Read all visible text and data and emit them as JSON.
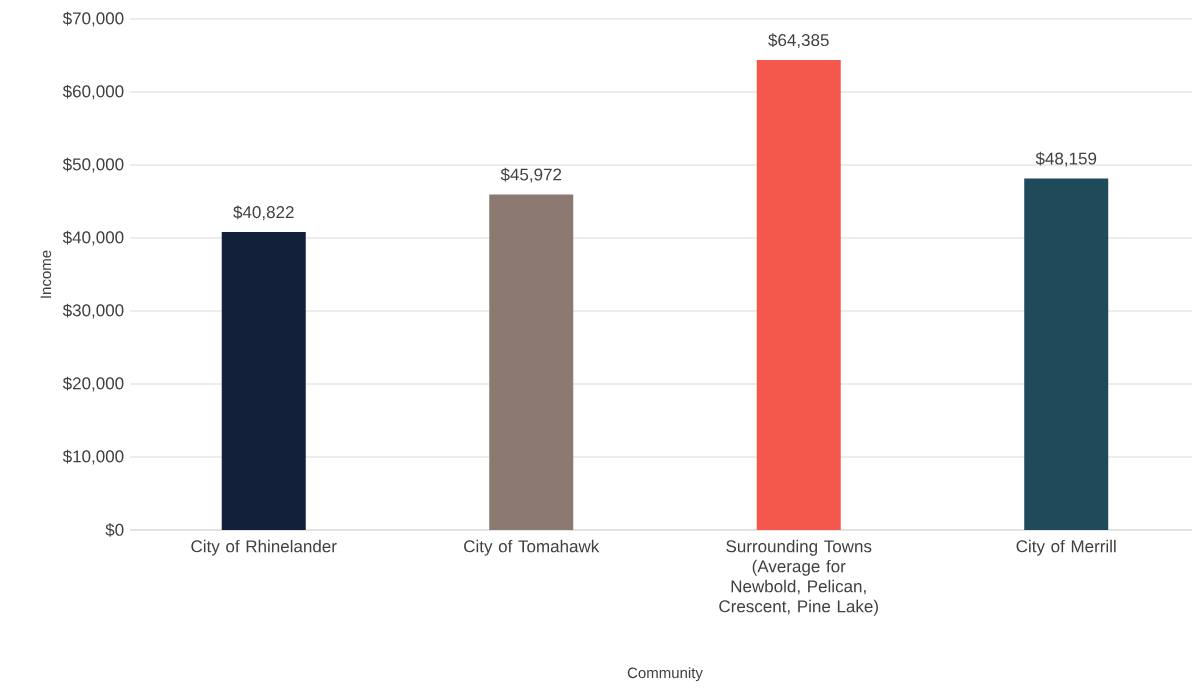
{
  "chart_data": {
    "type": "bar",
    "xlabel": "Community",
    "ylabel": "Income",
    "categories": [
      "City of Rhinelander",
      "City of Tomahawk",
      "Surrounding Towns (Average for Newbold, Pelican, Crescent, Pine Lake)",
      "City of Merrill"
    ],
    "values": [
      40822,
      45972,
      64385,
      48159
    ],
    "colors": [
      "#132039",
      "#8c7a70",
      "#f4574b",
      "#1f4a5a"
    ],
    "value_labels": [
      "$40,822",
      "$45,972",
      "$64,385",
      "$48,159"
    ],
    "ylim": [
      0,
      70000
    ],
    "yticks": [
      {
        "value": 0,
        "label": "$0"
      },
      {
        "value": 10000,
        "label": "$10,000"
      },
      {
        "value": 20000,
        "label": "$20,000"
      },
      {
        "value": 30000,
        "label": "$30,000"
      },
      {
        "value": 40000,
        "label": "$40,000"
      },
      {
        "value": 50000,
        "label": "$50,000"
      },
      {
        "value": 60000,
        "label": "$60,000"
      },
      {
        "value": 70000,
        "label": "$70,000"
      }
    ],
    "grid": "y"
  }
}
